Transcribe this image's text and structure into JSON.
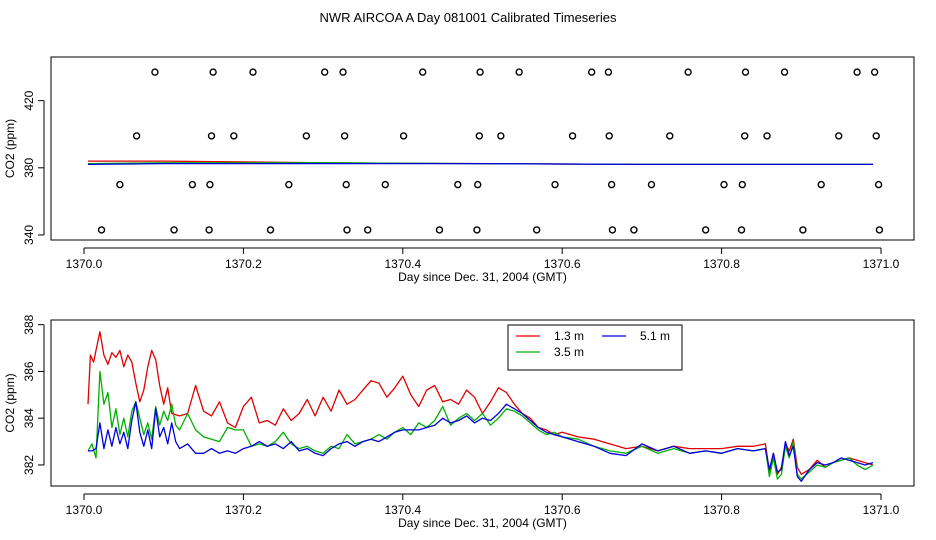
{
  "title": "NWR AIRCOA A  Day 081001  Calibrated Timeseries",
  "chart_data": [
    {
      "type": "scatter",
      "xlabel": "Day since Dec. 31, 2004 (GMT)",
      "ylabel": "CO2 (ppm)",
      "xlim": [
        1370.0,
        1371.0
      ],
      "ylim": [
        337,
        446
      ],
      "xticks": [
        1370.0,
        1370.2,
        1370.4,
        1370.6,
        1370.8,
        1371.0
      ],
      "xtick_labels": [
        "1370.0",
        "1370.2",
        "1370.4",
        "1370.6",
        "1370.8",
        "1371.0"
      ],
      "yticks": [
        340,
        380,
        420
      ],
      "ytick_labels": [
        "340",
        "380",
        "420"
      ],
      "points": [
        [
          1370.089,
          437
        ],
        [
          1370.162,
          437
        ],
        [
          1370.212,
          437
        ],
        [
          1370.302,
          437
        ],
        [
          1370.325,
          437
        ],
        [
          1370.425,
          437
        ],
        [
          1370.497,
          437
        ],
        [
          1370.546,
          437
        ],
        [
          1370.637,
          437
        ],
        [
          1370.658,
          437
        ],
        [
          1370.758,
          437
        ],
        [
          1370.83,
          437
        ],
        [
          1370.879,
          437
        ],
        [
          1370.97,
          437
        ],
        [
          1370.992,
          437
        ],
        [
          1370.066,
          399
        ],
        [
          1370.16,
          399
        ],
        [
          1370.188,
          399
        ],
        [
          1370.279,
          399
        ],
        [
          1370.327,
          399
        ],
        [
          1370.401,
          399
        ],
        [
          1370.496,
          399
        ],
        [
          1370.523,
          399
        ],
        [
          1370.613,
          399
        ],
        [
          1370.659,
          399
        ],
        [
          1370.735,
          399
        ],
        [
          1370.829,
          399
        ],
        [
          1370.857,
          399
        ],
        [
          1370.947,
          399
        ],
        [
          1370.994,
          399
        ],
        [
          1370.045,
          370
        ],
        [
          1370.136,
          370
        ],
        [
          1370.158,
          370
        ],
        [
          1370.257,
          370
        ],
        [
          1370.329,
          370
        ],
        [
          1370.378,
          370
        ],
        [
          1370.469,
          370
        ],
        [
          1370.494,
          370
        ],
        [
          1370.591,
          370
        ],
        [
          1370.662,
          370
        ],
        [
          1370.712,
          370
        ],
        [
          1370.803,
          370
        ],
        [
          1370.826,
          370
        ],
        [
          1370.925,
          370
        ],
        [
          1370.997,
          370
        ],
        [
          1370.022,
          343
        ],
        [
          1370.113,
          343
        ],
        [
          1370.157,
          343
        ],
        [
          1370.234,
          343
        ],
        [
          1370.33,
          343
        ],
        [
          1370.356,
          343
        ],
        [
          1370.446,
          343
        ],
        [
          1370.493,
          343
        ],
        [
          1370.568,
          343
        ],
        [
          1370.663,
          343
        ],
        [
          1370.69,
          343
        ],
        [
          1370.78,
          343
        ],
        [
          1370.825,
          343
        ],
        [
          1370.902,
          343
        ],
        [
          1370.998,
          343
        ]
      ],
      "series": [
        {
          "name": "1.3 m",
          "color": "#e00000",
          "x": [
            1370.005,
            1370.1,
            1370.3,
            1370.5,
            1370.7,
            1370.99
          ],
          "values": [
            384,
            384,
            383,
            382.5,
            382,
            382
          ]
        },
        {
          "name": "3.5 m",
          "color": "#00b000",
          "x": [
            1370.005,
            1370.1,
            1370.3,
            1370.5,
            1370.7,
            1370.99
          ],
          "values": [
            382.5,
            383,
            383,
            382.5,
            382,
            382
          ]
        },
        {
          "name": "5.1 m",
          "color": "#0000e0",
          "x": [
            1370.005,
            1370.1,
            1370.3,
            1370.5,
            1370.7,
            1370.99
          ],
          "values": [
            382,
            382.5,
            382.5,
            382.5,
            382,
            382
          ]
        }
      ]
    },
    {
      "type": "line",
      "xlabel": "Day since Dec. 31, 2004 (GMT)",
      "ylabel": "CO2 (ppm)",
      "xlim": [
        1370.0,
        1371.0
      ],
      "ylim": [
        381.1,
        388.2
      ],
      "xticks": [
        1370.0,
        1370.2,
        1370.4,
        1370.6,
        1370.8,
        1371.0
      ],
      "xtick_labels": [
        "1370.0",
        "1370.2",
        "1370.4",
        "1370.6",
        "1370.8",
        "1371.0"
      ],
      "yticks": [
        382,
        384,
        386,
        388
      ],
      "ytick_labels": [
        "382",
        "384",
        "386",
        "388"
      ],
      "legend_position": "top-right",
      "series": [
        {
          "name": "1.3 m",
          "color": "#e00000",
          "x": [
            1370.005,
            1370.008,
            1370.012,
            1370.015,
            1370.02,
            1370.025,
            1370.03,
            1370.035,
            1370.04,
            1370.045,
            1370.05,
            1370.055,
            1370.06,
            1370.065,
            1370.07,
            1370.075,
            1370.08,
            1370.085,
            1370.09,
            1370.095,
            1370.1,
            1370.105,
            1370.11,
            1370.12,
            1370.13,
            1370.14,
            1370.15,
            1370.16,
            1370.17,
            1370.18,
            1370.19,
            1370.2,
            1370.21,
            1370.22,
            1370.23,
            1370.24,
            1370.25,
            1370.26,
            1370.27,
            1370.28,
            1370.29,
            1370.3,
            1370.31,
            1370.32,
            1370.33,
            1370.34,
            1370.35,
            1370.36,
            1370.37,
            1370.38,
            1370.39,
            1370.4,
            1370.41,
            1370.42,
            1370.43,
            1370.44,
            1370.45,
            1370.46,
            1370.47,
            1370.48,
            1370.49,
            1370.5,
            1370.51,
            1370.52,
            1370.53,
            1370.54,
            1370.55,
            1370.56,
            1370.57,
            1370.58,
            1370.59,
            1370.6,
            1370.62,
            1370.64,
            1370.66,
            1370.68,
            1370.7,
            1370.72,
            1370.74,
            1370.76,
            1370.78,
            1370.8,
            1370.82,
            1370.84,
            1370.855,
            1370.86,
            1370.865,
            1370.87,
            1370.875,
            1370.88,
            1370.885,
            1370.89,
            1370.895,
            1370.9,
            1370.91,
            1370.92,
            1370.93,
            1370.94,
            1370.95,
            1370.96,
            1370.97,
            1370.98,
            1370.99
          ],
          "values": [
            384.6,
            386.7,
            386.4,
            386.9,
            387.7,
            386.7,
            386.3,
            386.8,
            386.6,
            386.9,
            386.2,
            386.7,
            386.4,
            385.5,
            384.7,
            385.2,
            386.2,
            386.9,
            386.5,
            385.4,
            384.6,
            385.3,
            384.2,
            384.1,
            384.2,
            385.4,
            384.3,
            384.1,
            384.7,
            383.8,
            383.6,
            384.5,
            384.9,
            383.8,
            383.9,
            383.7,
            384.4,
            383.9,
            384.2,
            384.8,
            384.1,
            384.9,
            384.3,
            385.2,
            384.6,
            384.8,
            385.2,
            385.6,
            385.5,
            384.9,
            385.3,
            385.8,
            385.0,
            384.5,
            385.2,
            385.4,
            384.7,
            384.8,
            384.6,
            385.2,
            384.9,
            384.2,
            384.7,
            385.3,
            385.1,
            384.6,
            384.2,
            384.0,
            383.6,
            383.5,
            383.3,
            383.4,
            383.2,
            383.1,
            382.9,
            382.7,
            382.8,
            382.6,
            382.8,
            382.7,
            382.7,
            382.7,
            382.8,
            382.8,
            382.9,
            381.7,
            382.5,
            381.6,
            381.9,
            382.9,
            382.6,
            383.1,
            381.9,
            381.6,
            381.8,
            382.2,
            381.9,
            382.1,
            382.2,
            382.3,
            382.2,
            382.1,
            382.0
          ]
        },
        {
          "name": "3.5 m",
          "color": "#00b000",
          "x": [
            1370.005,
            1370.01,
            1370.015,
            1370.02,
            1370.025,
            1370.03,
            1370.035,
            1370.04,
            1370.045,
            1370.05,
            1370.055,
            1370.06,
            1370.065,
            1370.07,
            1370.075,
            1370.08,
            1370.085,
            1370.09,
            1370.095,
            1370.1,
            1370.105,
            1370.11,
            1370.115,
            1370.12,
            1370.13,
            1370.14,
            1370.15,
            1370.16,
            1370.17,
            1370.18,
            1370.19,
            1370.2,
            1370.21,
            1370.22,
            1370.23,
            1370.24,
            1370.25,
            1370.26,
            1370.27,
            1370.28,
            1370.29,
            1370.3,
            1370.31,
            1370.32,
            1370.33,
            1370.34,
            1370.35,
            1370.36,
            1370.37,
            1370.38,
            1370.39,
            1370.4,
            1370.41,
            1370.42,
            1370.43,
            1370.44,
            1370.45,
            1370.46,
            1370.47,
            1370.48,
            1370.49,
            1370.5,
            1370.51,
            1370.52,
            1370.53,
            1370.54,
            1370.55,
            1370.56,
            1370.57,
            1370.58,
            1370.59,
            1370.6,
            1370.62,
            1370.64,
            1370.66,
            1370.68,
            1370.7,
            1370.72,
            1370.74,
            1370.76,
            1370.78,
            1370.8,
            1370.82,
            1370.84,
            1370.855,
            1370.86,
            1370.865,
            1370.87,
            1370.875,
            1370.88,
            1370.885,
            1370.89,
            1370.895,
            1370.9,
            1370.91,
            1370.92,
            1370.93,
            1370.94,
            1370.95,
            1370.96,
            1370.97,
            1370.98,
            1370.99
          ],
          "values": [
            382.6,
            382.9,
            382.3,
            386.0,
            384.6,
            385.1,
            383.6,
            384.4,
            383.3,
            384.0,
            383.2,
            384.3,
            384.7,
            384.0,
            383.3,
            383.8,
            383.1,
            384.5,
            383.7,
            384.3,
            383.9,
            384.6,
            383.7,
            383.5,
            384.2,
            383.5,
            383.2,
            383.1,
            383.0,
            383.6,
            383.5,
            383.5,
            382.8,
            382.9,
            382.8,
            383.0,
            383.4,
            382.9,
            382.7,
            382.8,
            382.6,
            382.5,
            382.8,
            382.7,
            383.3,
            382.9,
            383.0,
            383.1,
            383.3,
            383.1,
            383.4,
            383.6,
            383.3,
            383.8,
            383.6,
            383.9,
            384.5,
            383.7,
            384.0,
            384.2,
            383.9,
            384.2,
            383.7,
            384.0,
            384.4,
            384.3,
            384.1,
            383.8,
            383.5,
            383.3,
            383.4,
            383.2,
            383.1,
            382.8,
            382.6,
            382.5,
            382.8,
            382.5,
            382.7,
            382.5,
            382.6,
            382.5,
            382.7,
            382.6,
            382.7,
            381.5,
            382.3,
            381.4,
            381.6,
            382.8,
            382.3,
            383.0,
            381.6,
            381.4,
            381.7,
            382.0,
            381.9,
            382.1,
            382.2,
            382.3,
            382.0,
            381.8,
            382.0
          ]
        },
        {
          "name": "5.1 m",
          "color": "#0000e0",
          "x": [
            1370.005,
            1370.01,
            1370.015,
            1370.02,
            1370.025,
            1370.03,
            1370.035,
            1370.04,
            1370.045,
            1370.05,
            1370.055,
            1370.06,
            1370.065,
            1370.07,
            1370.075,
            1370.08,
            1370.085,
            1370.09,
            1370.095,
            1370.1,
            1370.105,
            1370.11,
            1370.115,
            1370.12,
            1370.13,
            1370.14,
            1370.15,
            1370.16,
            1370.17,
            1370.18,
            1370.19,
            1370.2,
            1370.21,
            1370.22,
            1370.23,
            1370.24,
            1370.25,
            1370.26,
            1370.27,
            1370.28,
            1370.29,
            1370.3,
            1370.31,
            1370.32,
            1370.33,
            1370.34,
            1370.35,
            1370.36,
            1370.37,
            1370.38,
            1370.39,
            1370.4,
            1370.41,
            1370.42,
            1370.43,
            1370.44,
            1370.45,
            1370.46,
            1370.47,
            1370.48,
            1370.49,
            1370.5,
            1370.51,
            1370.52,
            1370.53,
            1370.54,
            1370.55,
            1370.56,
            1370.57,
            1370.58,
            1370.59,
            1370.6,
            1370.62,
            1370.64,
            1370.66,
            1370.68,
            1370.7,
            1370.72,
            1370.74,
            1370.76,
            1370.78,
            1370.8,
            1370.82,
            1370.84,
            1370.855,
            1370.86,
            1370.865,
            1370.87,
            1370.875,
            1370.88,
            1370.885,
            1370.89,
            1370.895,
            1370.9,
            1370.91,
            1370.92,
            1370.93,
            1370.94,
            1370.95,
            1370.96,
            1370.97,
            1370.98,
            1370.99
          ],
          "values": [
            382.6,
            382.6,
            382.7,
            383.8,
            382.7,
            383.5,
            382.8,
            383.6,
            382.9,
            383.4,
            382.7,
            383.9,
            384.7,
            383.4,
            382.8,
            383.5,
            382.7,
            384.4,
            383.2,
            383.6,
            382.9,
            383.8,
            383.0,
            382.7,
            382.9,
            382.5,
            382.5,
            382.7,
            382.5,
            382.6,
            382.5,
            382.7,
            382.8,
            383.0,
            382.8,
            382.9,
            382.7,
            383.0,
            382.6,
            382.7,
            382.5,
            382.4,
            382.7,
            382.9,
            383.0,
            382.8,
            383.0,
            383.1,
            383.0,
            383.2,
            383.4,
            383.5,
            383.5,
            383.5,
            383.6,
            383.7,
            384.0,
            383.8,
            383.9,
            384.1,
            383.8,
            384.0,
            383.9,
            384.2,
            384.6,
            384.4,
            384.2,
            383.9,
            383.6,
            383.4,
            383.3,
            383.2,
            383.0,
            382.8,
            382.5,
            382.4,
            382.9,
            382.6,
            382.8,
            382.5,
            382.6,
            382.5,
            382.7,
            382.6,
            382.7,
            381.8,
            382.5,
            381.7,
            381.8,
            383.0,
            382.4,
            382.8,
            381.5,
            381.3,
            381.8,
            382.1,
            382.0,
            382.1,
            382.3,
            382.2,
            382.1,
            382.0,
            382.1
          ]
        }
      ]
    }
  ]
}
